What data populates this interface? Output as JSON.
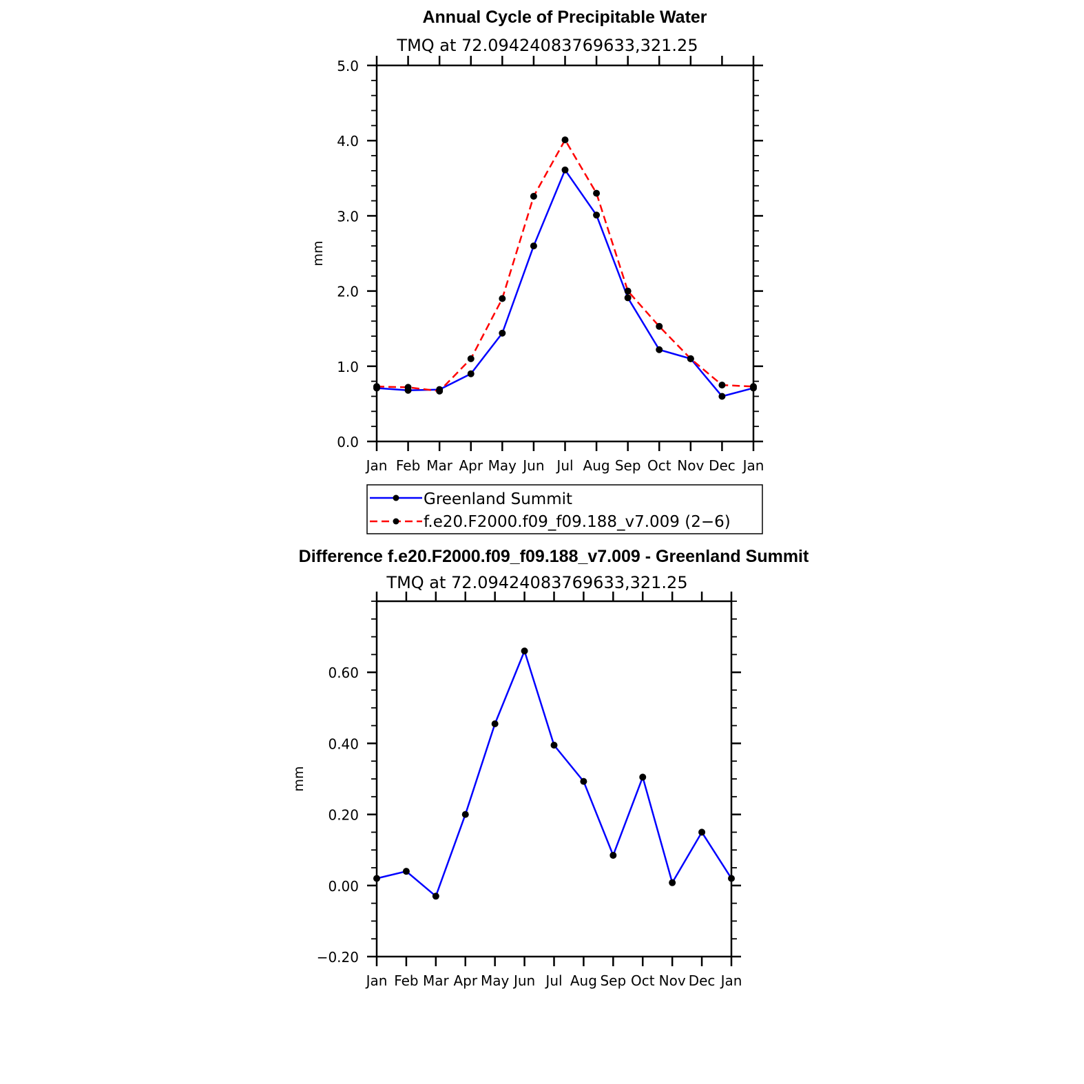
{
  "chart_data": [
    {
      "type": "line",
      "title": "Annual Cycle of Precipitable Water",
      "subtitle": "TMQ at 72.09424083769633,321.25",
      "xlabel": "",
      "ylabel": "mm",
      "categories": [
        "Jan",
        "Feb",
        "Mar",
        "Apr",
        "May",
        "Jun",
        "Jul",
        "Aug",
        "Sep",
        "Oct",
        "Nov",
        "Dec",
        "Jan"
      ],
      "ylim": [
        0.0,
        5.0
      ],
      "yticks": [
        "0.0",
        "1.0",
        "2.0",
        "3.0",
        "4.0",
        "5.0"
      ],
      "ytick_values": [
        0,
        1,
        2,
        3,
        4,
        5
      ],
      "y_minor_step": 0.2,
      "series": [
        {
          "name": "Greenland Summit",
          "color": "#0000ff",
          "dash": "solid",
          "values": [
            0.71,
            0.68,
            0.69,
            0.9,
            1.44,
            2.6,
            3.61,
            3.01,
            1.91,
            1.22,
            1.1,
            0.6,
            0.71
          ]
        },
        {
          "name": "f.e20.F2000.f09_f09.188_v7.009 (2−6)",
          "color": "#ff0000",
          "dash": "dashed",
          "values": [
            0.73,
            0.72,
            0.67,
            1.1,
            1.9,
            3.26,
            4.01,
            3.3,
            2.0,
            1.53,
            1.1,
            0.75,
            0.73
          ]
        }
      ],
      "legend": "bottom"
    },
    {
      "type": "line",
      "title": "Difference f.e20.F2000.f09_f09.188_v7.009 - Greenland Summit",
      "subtitle": "TMQ at 72.09424083769633,321.25",
      "xlabel": "",
      "ylabel": "mm",
      "categories": [
        "Jan",
        "Feb",
        "Mar",
        "Apr",
        "May",
        "Jun",
        "Jul",
        "Aug",
        "Sep",
        "Oct",
        "Nov",
        "Dec",
        "Jan"
      ],
      "ylim": [
        -0.2,
        0.8
      ],
      "yticks": [
        "−0.20",
        "0.00",
        "0.20",
        "0.40",
        "0.60"
      ],
      "ytick_values": [
        -0.2,
        0,
        0.2,
        0.4,
        0.6
      ],
      "y_minor_step": 0.05,
      "series": [
        {
          "name": "Difference",
          "color": "#0000ff",
          "dash": "solid",
          "values": [
            0.02,
            0.04,
            -0.03,
            0.2,
            0.455,
            0.66,
            0.395,
            0.293,
            0.085,
            0.305,
            0.008,
            0.15,
            0.02
          ]
        }
      ]
    }
  ]
}
